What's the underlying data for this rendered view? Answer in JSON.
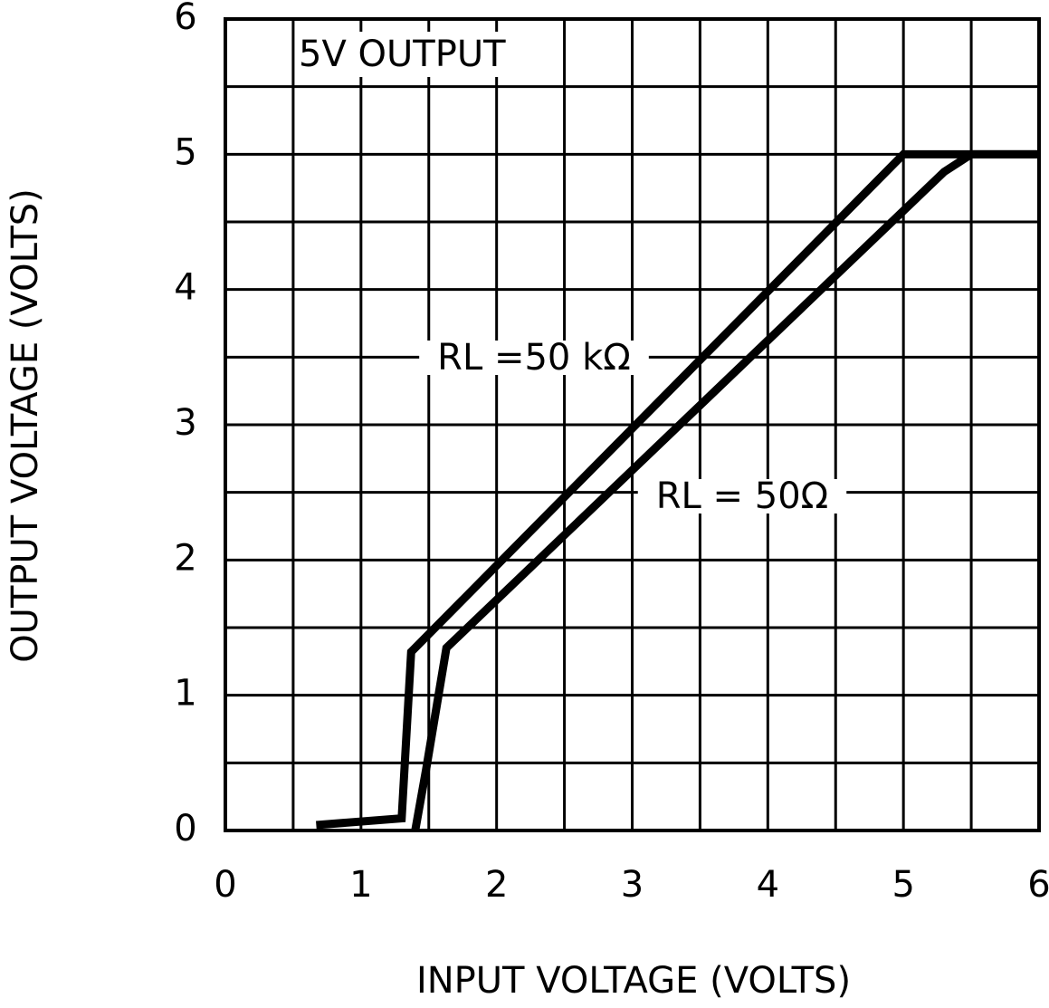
{
  "chart_data": {
    "type": "line",
    "xlabel": "INPUT VOLTAGE (VOLTS)",
    "ylabel": "OUTPUT VOLTAGE (VOLTS)",
    "annotation": "5V OUTPUT",
    "xlim": [
      0,
      6
    ],
    "ylim": [
      0,
      6
    ],
    "xticks": [
      0,
      1,
      2,
      3,
      4,
      5,
      6
    ],
    "yticks": [
      0,
      1,
      2,
      3,
      4,
      5,
      6
    ],
    "grid": true,
    "series": [
      {
        "name": "RL =50 kΩ",
        "color": "#000000",
        "x": [
          0.67,
          1.3,
          1.37,
          5.0,
          6.0
        ],
        "values": [
          0.04,
          0.09,
          1.32,
          5.0,
          5.0
        ]
      },
      {
        "name": "RL = 50Ω",
        "color": "#000000",
        "x": [
          1.4,
          1.48,
          1.63,
          5.3,
          5.5,
          6.0
        ],
        "values": [
          0,
          0.45,
          1.35,
          4.87,
          5.0,
          5.0
        ]
      }
    ]
  }
}
